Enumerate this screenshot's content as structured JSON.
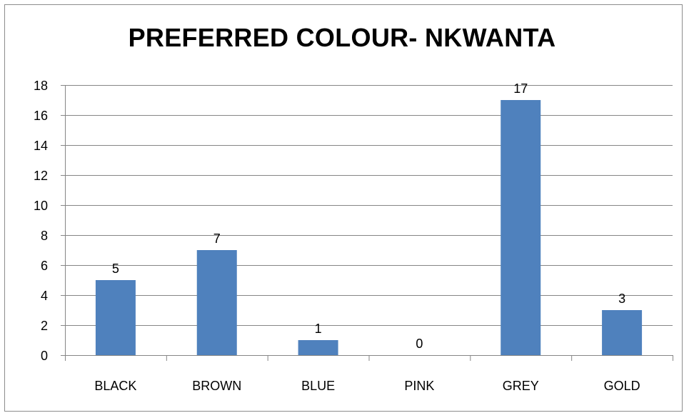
{
  "chart_data": {
    "type": "bar",
    "title": "PREFERRED COLOUR- NKWANTA",
    "categories": [
      "BLACK",
      "BROWN",
      "BLUE",
      "PINK",
      "GREY",
      "GOLD"
    ],
    "values": [
      5,
      7,
      1,
      0,
      17,
      3
    ],
    "data_labels": [
      "5",
      "7",
      "1",
      "0",
      "17",
      "3"
    ],
    "xlabel": "",
    "ylabel": "",
    "ylim": [
      0,
      18
    ],
    "yticks": [
      0,
      2,
      4,
      6,
      8,
      10,
      12,
      14,
      16,
      18
    ],
    "grid": true,
    "legend": "none",
    "colors": {
      "bar": "#4f81bd",
      "grid": "#868686",
      "axis": "#868686",
      "frame": "#8c8c8c",
      "text": "#000000"
    }
  }
}
